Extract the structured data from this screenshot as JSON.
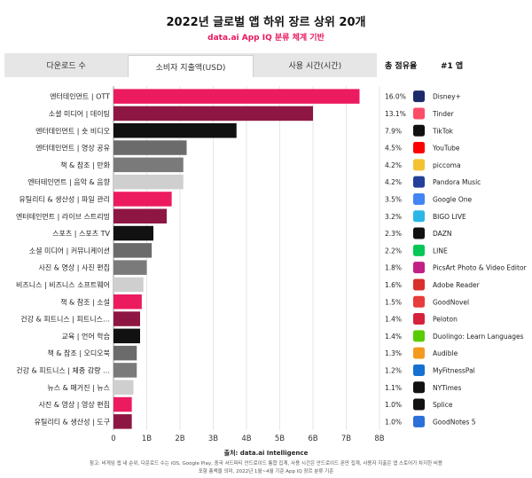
{
  "title": "2022년 글로벌 앱 하위 장르 상위 20개",
  "subtitle": "data.ai App IQ 분류 체계 기반",
  "tabs": [
    {
      "label": "다운로드 수",
      "active": false
    },
    {
      "label": "소비자 지출액(USD)",
      "active": true
    },
    {
      "label": "사용 시간(시간)",
      "active": false
    }
  ],
  "columns": {
    "share": "총 점유율",
    "top_app": "#1 앱"
  },
  "source": "출처: data.ai Intelligence",
  "notes": [
    "참고: 비게임 앱 내 순위, 다운로드 수는 iOS, Google Play, 중국 서드파티 안드로이드 통합 집계, 사용 시간은 안드로이드 폰만 집계, 사용자 지출은 앱 스토어가 차지한 비용",
    "포함 총액을 의미, 2022년 1월~4월 기준 App IQ 장르 분류 기준"
  ],
  "chart_data": {
    "type": "bar",
    "orientation": "horizontal",
    "title": "2022년 글로벌 앱 하위 장르 상위 20개",
    "xlim": [
      0,
      8
    ],
    "x_ticks": [
      "0",
      "1B",
      "2B",
      "3B",
      "4B",
      "5B",
      "6B",
      "7B",
      "8B"
    ],
    "grid": true,
    "categories": [
      "엔터테인먼트 | OTT",
      "소셜 미디어 | 데이팅",
      "엔터테인먼트 | 숏 비디오",
      "엔터테인먼트 | 영상 공유",
      "책 & 참조 | 만화",
      "엔터테인먼트 | 음악 & 음향",
      "유틸리티 & 생산성 | 파일 관리",
      "엔터테인먼트 | 라이브 스트리밍",
      "스포츠 | 스포츠 TV",
      "소셜 미디어 | 커뮤니케이션",
      "사진 & 영상 | 사진 편집",
      "비즈니스 | 비즈니스 소프트웨어",
      "책 & 참조 | 소설",
      "건강 & 피트니스 | 피트니스…",
      "교육 | 언어 학습",
      "책 & 참조 | 오디오북",
      "건강 & 피트니스 | 체중 감량 …",
      "뉴스 & 매거진 | 뉴스",
      "사진 & 영상 | 영상 편집",
      "유틸리티 & 생산성 | 도구"
    ],
    "values": [
      7.4,
      6.0,
      3.7,
      2.2,
      2.1,
      2.1,
      1.75,
      1.6,
      1.2,
      1.15,
      1.0,
      0.9,
      0.85,
      0.8,
      0.8,
      0.7,
      0.7,
      0.6,
      0.55,
      0.55
    ],
    "bar_colors": [
      "#ec1b5f",
      "#8e1642",
      "#111111",
      "#6b6b6b",
      "#7a7a7a",
      "#cfcfcf",
      "#ec1b5f",
      "#8e1642",
      "#111111",
      "#6b6b6b",
      "#7a7a7a",
      "#cfcfcf",
      "#ec1b5f",
      "#8e1642",
      "#111111",
      "#6b6b6b",
      "#7a7a7a",
      "#cfcfcf",
      "#ec1b5f",
      "#8e1642"
    ],
    "shares": [
      "16.0%",
      "13.1%",
      "7.9%",
      "4.5%",
      "4.2%",
      "4.2%",
      "3.5%",
      "3.2%",
      "2.3%",
      "2.2%",
      "1.8%",
      "1.6%",
      "1.5%",
      "1.4%",
      "1.4%",
      "1.3%",
      "1.2%",
      "1.1%",
      "1.0%",
      "1.0%"
    ],
    "top_apps": [
      {
        "name": "Disney+",
        "icon": "disney-plus-icon",
        "color": "#1b2a6b"
      },
      {
        "name": "Tinder",
        "icon": "tinder-icon",
        "color": "#fd4c68"
      },
      {
        "name": "TikTok",
        "icon": "tiktok-icon",
        "color": "#111111"
      },
      {
        "name": "YouTube",
        "icon": "youtube-icon",
        "color": "#ff0000"
      },
      {
        "name": "piccoma",
        "icon": "piccoma-icon",
        "color": "#f2c230"
      },
      {
        "name": "Pandora Music",
        "icon": "pandora-icon",
        "color": "#224099"
      },
      {
        "name": "Google One",
        "icon": "google-one-icon",
        "color": "#4285f4"
      },
      {
        "name": "BIGO LIVE",
        "icon": "bigo-live-icon",
        "color": "#2bb7e6"
      },
      {
        "name": "DAZN",
        "icon": "dazn-icon",
        "color": "#111111"
      },
      {
        "name": "LINE",
        "icon": "line-icon",
        "color": "#06c755"
      },
      {
        "name": "PicsArt Photo & Video Editor",
        "icon": "picsart-icon",
        "color": "#c21f87"
      },
      {
        "name": "Adobe Reader",
        "icon": "adobe-reader-icon",
        "color": "#d9302a"
      },
      {
        "name": "GoodNovel",
        "icon": "goodnovel-icon",
        "color": "#e83b3b"
      },
      {
        "name": "Peloton",
        "icon": "peloton-icon",
        "color": "#d6213a"
      },
      {
        "name": "Duolingo: Learn Languages",
        "icon": "duolingo-icon",
        "color": "#58cc02"
      },
      {
        "name": "Audible",
        "icon": "audible-icon",
        "color": "#f39a1f"
      },
      {
        "name": "MyFitnessPal",
        "icon": "myfitnesspal-icon",
        "color": "#1571d1"
      },
      {
        "name": "NYTimes",
        "icon": "nytimes-icon",
        "color": "#111111"
      },
      {
        "name": "Splice",
        "icon": "splice-icon",
        "color": "#111111"
      },
      {
        "name": "GoodNotes 5",
        "icon": "goodnotes-icon",
        "color": "#2b6fd8"
      }
    ]
  }
}
